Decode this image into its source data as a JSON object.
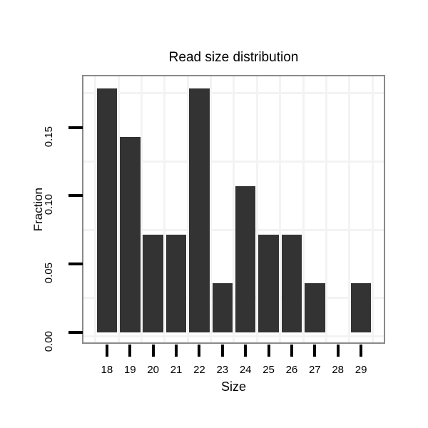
{
  "chart_data": {
    "type": "bar",
    "title": "Read size distribution",
    "xlabel": "Size",
    "ylabel": "Fraction",
    "categories": [
      "18",
      "19",
      "20",
      "21",
      "22",
      "23",
      "24",
      "25",
      "26",
      "27",
      "28",
      "29"
    ],
    "values": [
      0.1786,
      0.1429,
      0.0714,
      0.0714,
      0.1786,
      0.0357,
      0.1071,
      0.0714,
      0.0714,
      0.0357,
      0,
      0.0357
    ],
    "yticks": [
      {
        "value": 0.0,
        "label": "0.00"
      },
      {
        "value": 0.05,
        "label": "0.05"
      },
      {
        "value": 0.1,
        "label": "0.10"
      },
      {
        "value": 0.15,
        "label": "0.15"
      }
    ],
    "ylim": [
      -0.008,
      0.188
    ],
    "grid": "faint minor gridlines: horizontal at 0.025 steps between ticks, vertical between category columns",
    "minor_hgrid_values": [
      0.175,
      0.125,
      0.075,
      0.025,
      -0.003
    ],
    "legend": "none",
    "colors": {
      "bar": "#333333",
      "panel_border": "#898989",
      "gridline": "#f3f3f3",
      "tick": "#000000",
      "text": "#000000"
    }
  }
}
